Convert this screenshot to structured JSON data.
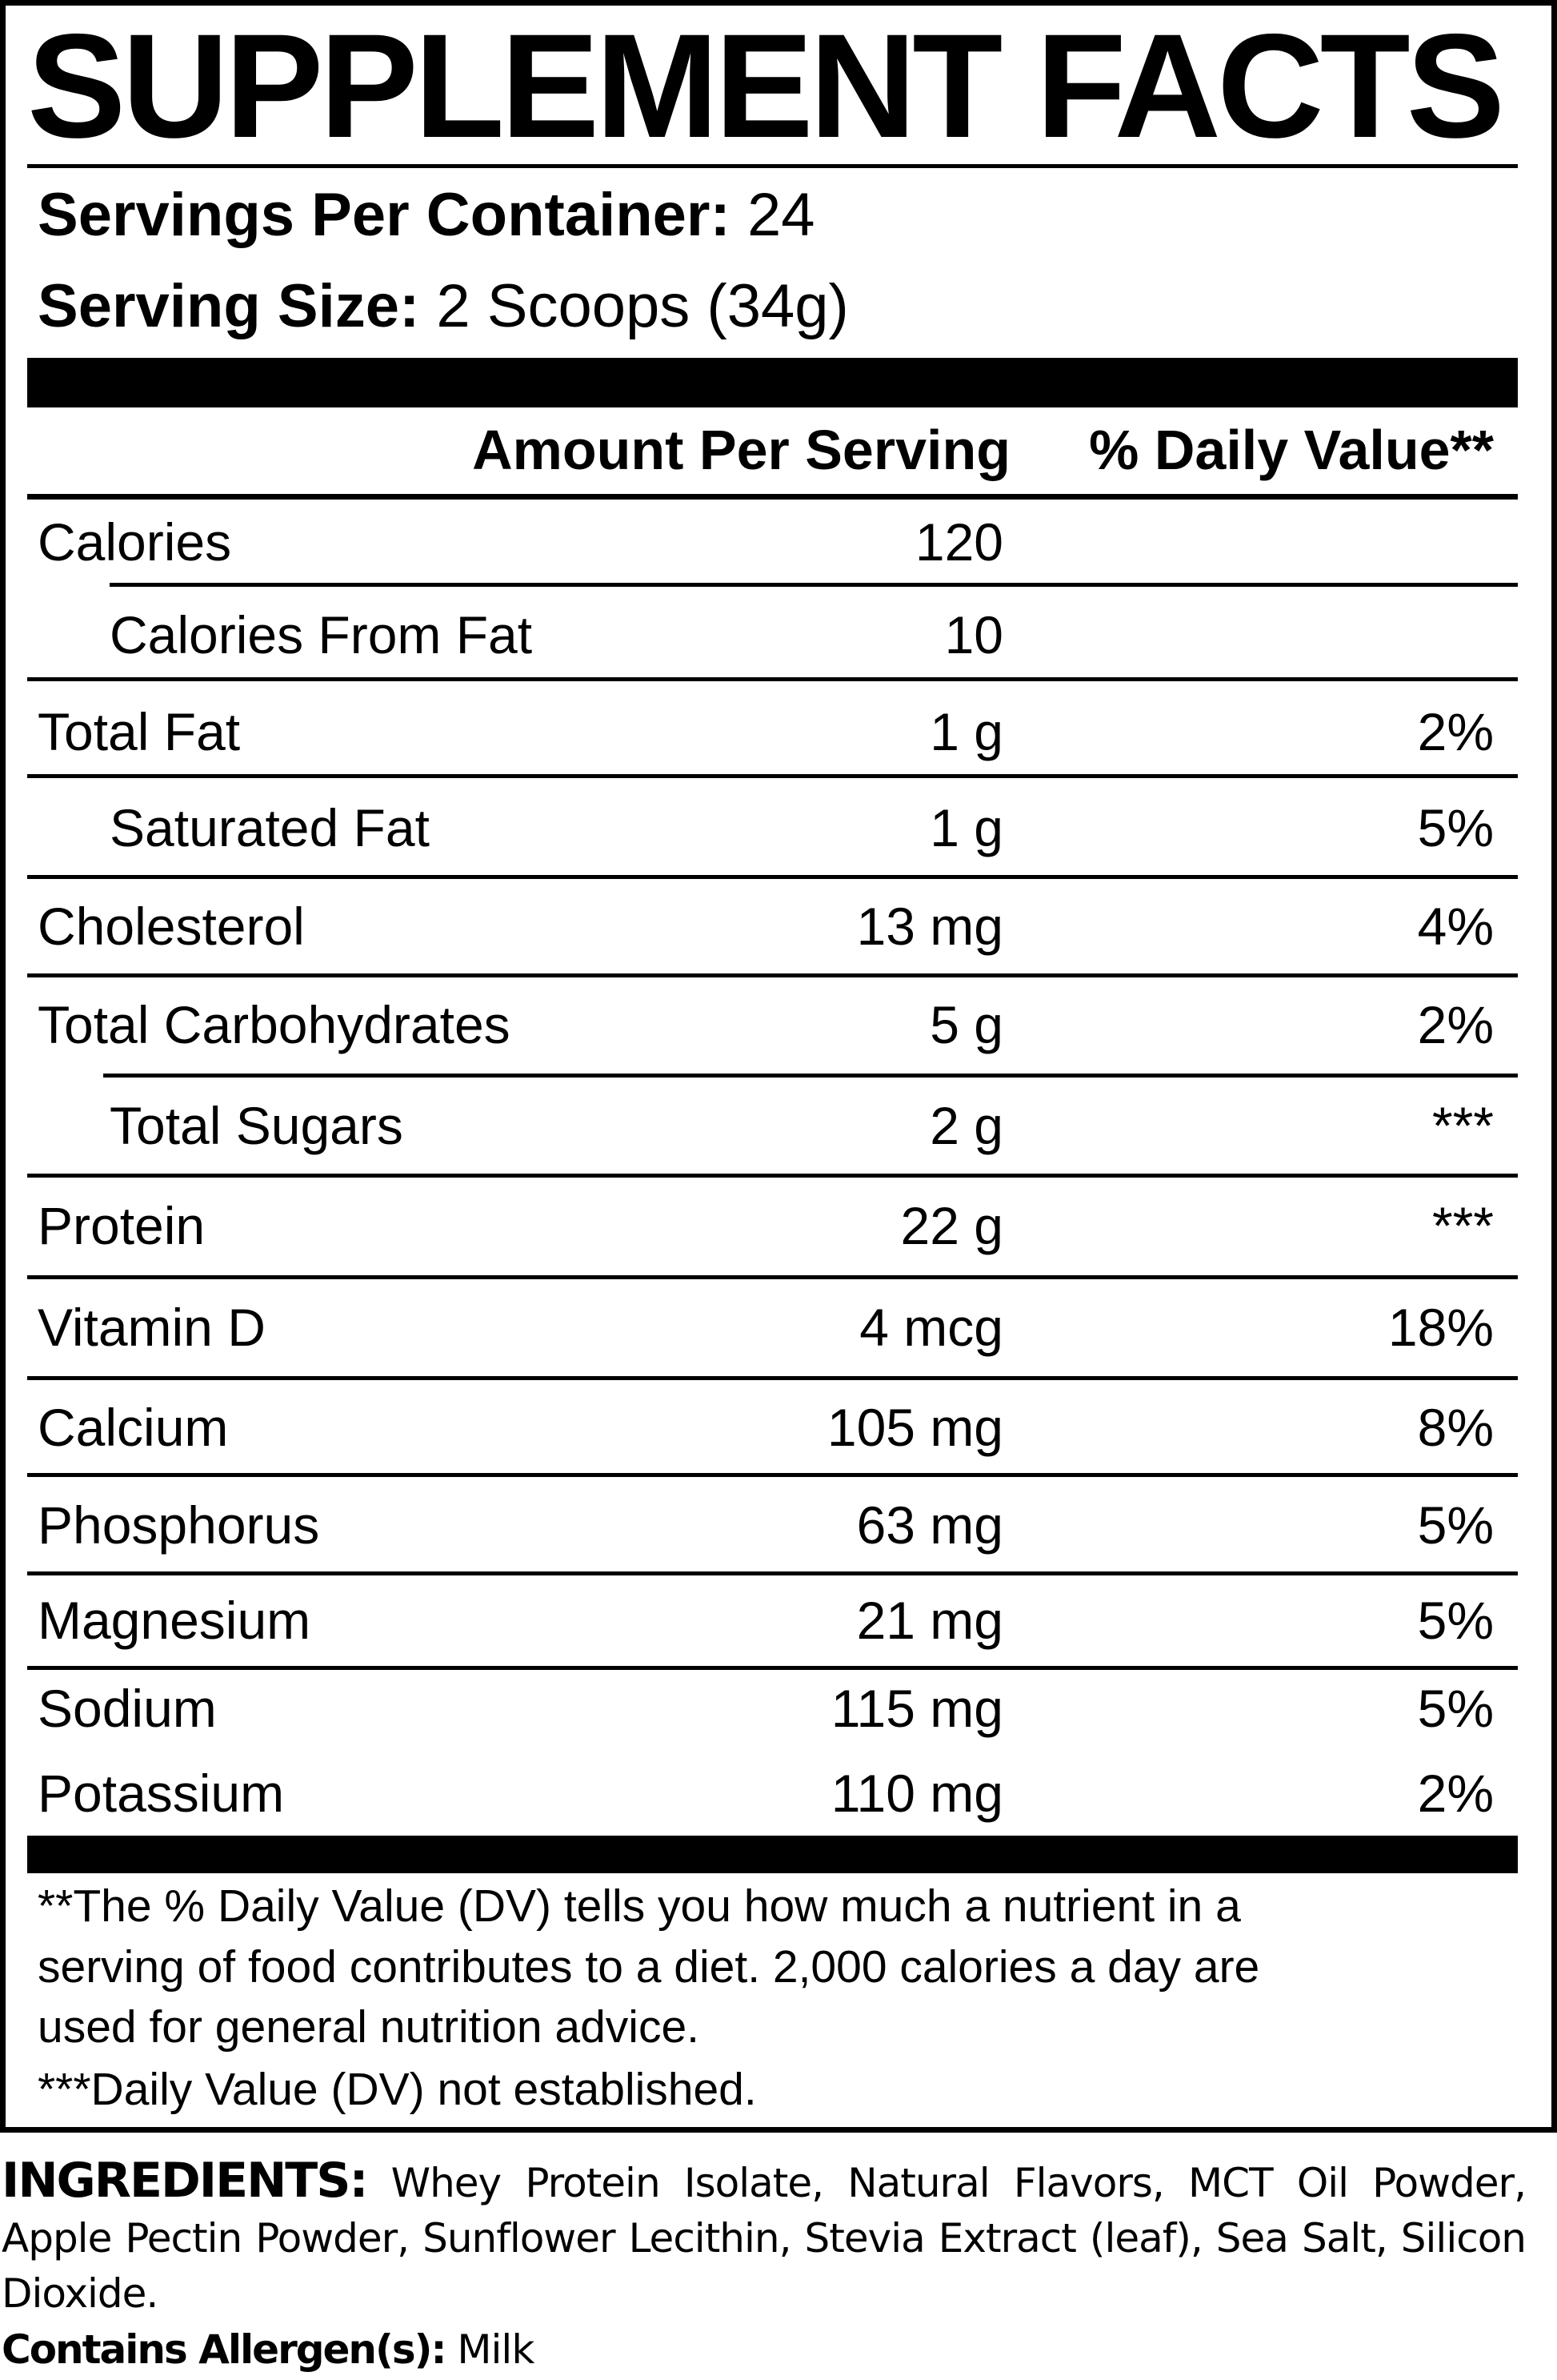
{
  "title": "SUPPLEMENT FACTS",
  "servings_per_container": {
    "label": "Servings Per Container:",
    "value": "24"
  },
  "serving_size": {
    "label": "Serving Size:",
    "value": "2 Scoops (34g)"
  },
  "header": {
    "amount": "Amount Per Serving",
    "dv": "% Daily Value**"
  },
  "rows": [
    {
      "label": "Calories",
      "amount": "120",
      "dv": "",
      "indent": false
    },
    {
      "label": "Calories From Fat",
      "amount": "10",
      "dv": "",
      "indent": true
    },
    {
      "label": "Total Fat",
      "amount": "1 g",
      "dv": "2%",
      "indent": false
    },
    {
      "label": "Saturated Fat",
      "amount": "1 g",
      "dv": "5%",
      "indent": true
    },
    {
      "label": "Cholesterol",
      "amount": "13 mg",
      "dv": "4%",
      "indent": false
    },
    {
      "label": "Total Carbohydrates",
      "amount": "5 g",
      "dv": "2%",
      "indent": false
    },
    {
      "label": "Total Sugars",
      "amount": "2 g",
      "dv": "***",
      "indent": true
    },
    {
      "label": "Protein",
      "amount": "22 g",
      "dv": "***",
      "indent": false
    },
    {
      "label": "Vitamin D",
      "amount": "4 mcg",
      "dv": "18%",
      "indent": false
    },
    {
      "label": "Calcium",
      "amount": "105 mg",
      "dv": "8%",
      "indent": false
    },
    {
      "label": "Phosphorus",
      "amount": "63 mg",
      "dv": "5%",
      "indent": false
    },
    {
      "label": "Magnesium",
      "amount": "21 mg",
      "dv": "5%",
      "indent": false
    },
    {
      "label": "Sodium",
      "amount": "115 mg",
      "dv": "5%",
      "indent": false
    },
    {
      "label": "Potassium",
      "amount": "110 mg",
      "dv": "2%",
      "indent": false
    }
  ],
  "footnotes": [
    "**The % Daily Value (DV) tells you how much a nutrient in a",
    "serving of food contributes to a diet. 2,000 calories a day are",
    "used for general nutrition advice.",
    "***Daily Value (DV) not established."
  ],
  "ingredients": {
    "label": "INGREDIENTS:",
    "text": "Whey Protein Isolate, Natural Flavors, MCT Oil Powder, Apple Pectin Powder, Sunflower Lecithin, Stevia Extract (leaf), Sea Salt, Silicon Dioxide."
  },
  "allergens": {
    "label": "Contains Allergen(s):",
    "text": "Milk"
  }
}
